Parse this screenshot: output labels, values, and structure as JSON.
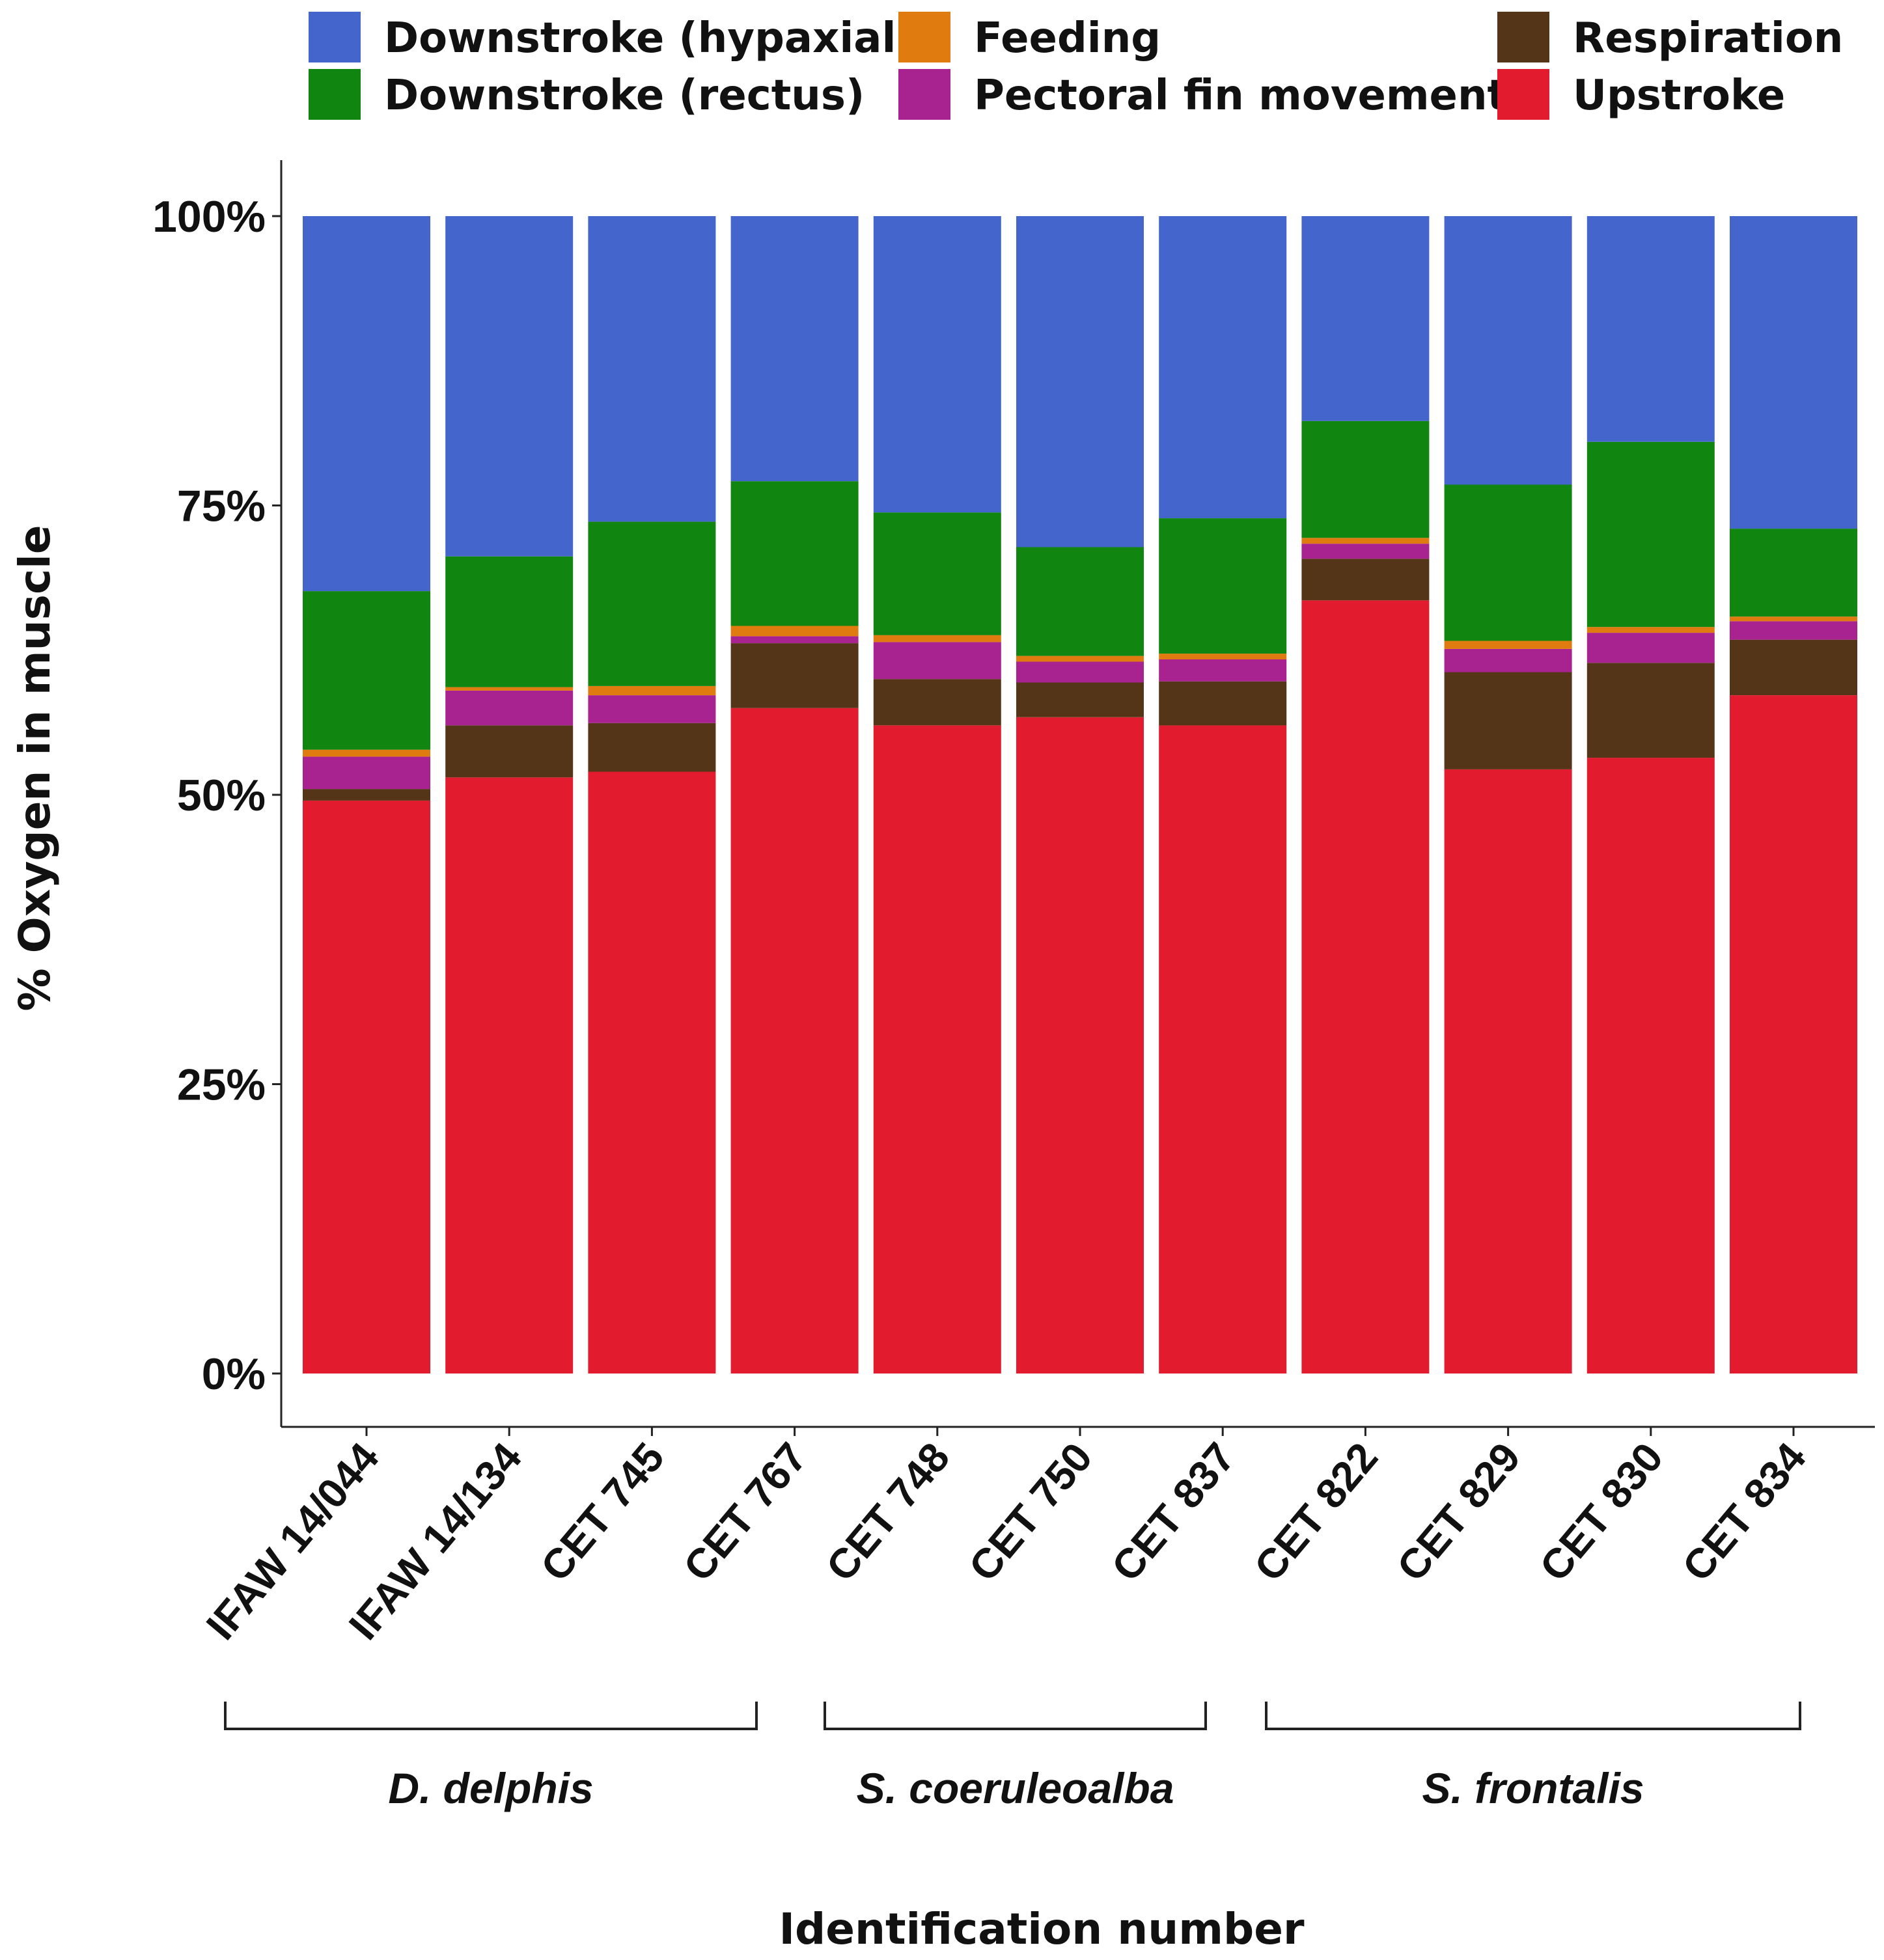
{
  "chart_data": {
    "type": "bar",
    "stacked": true,
    "title": "",
    "xlabel": "Identification number",
    "ylabel": "% Oxygen in muscle",
    "ylim": [
      0,
      100
    ],
    "yticks": [
      "0%",
      "25%",
      "50%",
      "75%",
      "100%"
    ],
    "legend_position": "top",
    "categories": [
      "IFAW 14/044",
      "IFAW 14/134",
      "CET 745",
      "CET 767",
      "CET 748",
      "CET 750",
      "CET 837",
      "CET 822",
      "CET 829",
      "CET 830",
      "CET 834"
    ],
    "legend": [
      {
        "name": "Downstroke (hypaxial)",
        "color": "#4466CC"
      },
      {
        "name": "Feeding",
        "color": "#E07B10"
      },
      {
        "name": "Respiration",
        "color": "#553518"
      },
      {
        "name": "Downstroke (rectus)",
        "color": "#108510"
      },
      {
        "name": "Pectoral fin movement",
        "color": "#A8238F"
      },
      {
        "name": "Upstroke",
        "color": "#E31B2F"
      }
    ],
    "series": [
      {
        "name": "Upstroke",
        "color": "#E31B2F",
        "values": [
          49.5,
          51.5,
          52.0,
          57.5,
          56.0,
          56.7,
          56.0,
          66.8,
          52.2,
          53.2,
          58.6
        ]
      },
      {
        "name": "Respiration",
        "color": "#553518",
        "values": [
          1.0,
          4.5,
          4.2,
          5.6,
          4.0,
          3.0,
          3.8,
          3.6,
          8.4,
          8.2,
          4.8
        ]
      },
      {
        "name": "Pectoral fin movement",
        "color": "#A8238F",
        "values": [
          2.8,
          3.0,
          2.4,
          0.6,
          3.2,
          1.8,
          1.9,
          1.3,
          2.0,
          2.6,
          1.6
        ]
      },
      {
        "name": "Feeding",
        "color": "#E07B10",
        "values": [
          0.6,
          0.3,
          0.8,
          0.9,
          0.6,
          0.5,
          0.5,
          0.5,
          0.7,
          0.5,
          0.4
        ]
      },
      {
        "name": "Downstroke (rectus)",
        "color": "#108510",
        "values": [
          13.7,
          11.3,
          14.2,
          12.5,
          10.6,
          9.4,
          11.7,
          10.1,
          13.5,
          16.0,
          7.6
        ]
      },
      {
        "name": "Downstroke (hypaxial)",
        "color": "#4466CC",
        "values": [
          32.4,
          29.4,
          26.4,
          22.9,
          25.6,
          28.6,
          26.1,
          17.7,
          23.2,
          19.5,
          27.0
        ]
      }
    ],
    "groups": [
      {
        "label": "D. delphis",
        "categories": [
          "IFAW 14/044",
          "IFAW 14/134",
          "CET 745",
          "CET 767"
        ]
      },
      {
        "label": "S. coeruleoalba",
        "categories": [
          "CET 748",
          "CET 750",
          "CET 837"
        ]
      },
      {
        "label": "S. frontalis",
        "categories": [
          "CET 822",
          "CET 829",
          "CET 830",
          "CET 834"
        ]
      }
    ]
  }
}
